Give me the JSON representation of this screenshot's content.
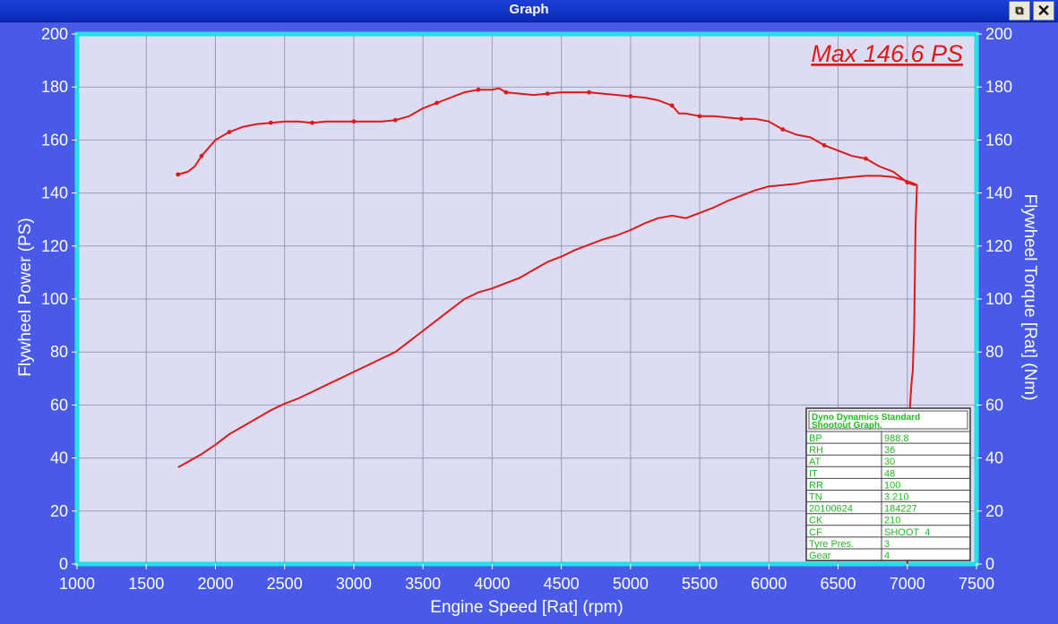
{
  "window": {
    "title": "Graph",
    "restore_glyph": "⧉",
    "close_glyph": "✕"
  },
  "colors": {
    "background": "#4a5ae8",
    "plot_area": "#dcdcf2",
    "plot_border": "#22e0e8",
    "curve": "#dd1a1a",
    "grid": "#9a9ab8",
    "axis_text": "#ffffff",
    "info_text": "#22bb22"
  },
  "chart_data": {
    "type": "line",
    "xlabel": "Engine Speed [Rat] (rpm)",
    "ylabel_left": "Flywheel Power (PS)",
    "ylabel_right": "Flywheel Torque [Rat] (Nm)",
    "xlim": [
      1000,
      7500
    ],
    "ylim": [
      0,
      200
    ],
    "x_ticks": [
      1000,
      1500,
      2000,
      2500,
      3000,
      3500,
      4000,
      4500,
      5000,
      5500,
      6000,
      6500,
      7000,
      7500
    ],
    "y_ticks": [
      0,
      20,
      40,
      60,
      80,
      100,
      120,
      140,
      160,
      180,
      200
    ],
    "y_ticks_right": [
      "0",
      "20",
      "40",
      "60",
      "80",
      "100",
      "120",
      "140",
      "160",
      "180",
      "200"
    ],
    "grid": true,
    "annotation": "Max 146.6 PS",
    "series": [
      {
        "x": [
          1730,
          1800,
          1850,
          1900,
          1950,
          2000,
          2100,
          2200,
          2300,
          2400,
          2500,
          2600,
          2700,
          2800,
          2900,
          3000,
          3100,
          3200,
          3300,
          3400,
          3500,
          3600,
          3700,
          3800,
          3900,
          4000,
          4050,
          4100,
          4200,
          4300,
          4400,
          4500,
          4600,
          4700,
          4800,
          4900,
          5000,
          5100,
          5200,
          5300,
          5350,
          5400,
          5500,
          5600,
          5700,
          5800,
          5900,
          6000,
          6100,
          6200,
          6300,
          6400,
          6500,
          6600,
          6700,
          6800,
          6900,
          7000,
          7050,
          7060
        ],
        "values": [
          147,
          148,
          150,
          154,
          157,
          160,
          163,
          165,
          166,
          166.5,
          167,
          167,
          166.5,
          167,
          167,
          167,
          167,
          167,
          167.5,
          169,
          172,
          174,
          176,
          178,
          179,
          179,
          179.5,
          178,
          177.5,
          177,
          177.5,
          178,
          178,
          178,
          177.5,
          177,
          176.5,
          176,
          175,
          173,
          170,
          170,
          169,
          169,
          168.5,
          168,
          168,
          167,
          164,
          162,
          161,
          158,
          156,
          154,
          153,
          150,
          148,
          144,
          143,
          143
        ]
      },
      {
        "x": [
          1730,
          1800,
          1900,
          2000,
          2100,
          2200,
          2300,
          2400,
          2500,
          2600,
          2700,
          2800,
          2900,
          3000,
          3100,
          3200,
          3300,
          3400,
          3500,
          3600,
          3700,
          3800,
          3900,
          4000,
          4100,
          4200,
          4300,
          4400,
          4500,
          4600,
          4700,
          4800,
          4900,
          5000,
          5100,
          5200,
          5300,
          5400,
          5500,
          5600,
          5700,
          5800,
          5900,
          6000,
          6100,
          6200,
          6300,
          6400,
          6500,
          6600,
          6700,
          6800,
          6900,
          7000,
          7050,
          7070,
          7060,
          7055,
          7050,
          7040,
          7030,
          7020,
          7010,
          7000
        ],
        "values": [
          36.5,
          38.5,
          41.5,
          45,
          49,
          52,
          55,
          58,
          60.5,
          62.5,
          65,
          67.5,
          70,
          72.5,
          75,
          77.5,
          80,
          84,
          88,
          92,
          96,
          100,
          102.5,
          104,
          106,
          108,
          111,
          114,
          116,
          118.5,
          120.5,
          122.5,
          124,
          126,
          128.5,
          130.5,
          131.5,
          130.5,
          132.5,
          134.5,
          137,
          139,
          141,
          142.5,
          143,
          143.5,
          144.5,
          145,
          145.5,
          146,
          146.5,
          146.5,
          146,
          144.5,
          143.5,
          143,
          128,
          110,
          90,
          73,
          68,
          60,
          40,
          0
        ]
      }
    ]
  },
  "info_table": {
    "title_line1": "Dyno Dynamics Standard",
    "title_line2": "Shootout Graph.",
    "rows": [
      [
        "BP",
        "988.8"
      ],
      [
        "RH",
        "36"
      ],
      [
        "AT",
        "30"
      ],
      [
        "IT",
        "48"
      ],
      [
        "RR",
        "100"
      ],
      [
        "TN",
        "3.210"
      ],
      [
        "20100624",
        "184227"
      ],
      [
        "CK",
        "210"
      ],
      [
        "CF",
        "SHOOT_4"
      ],
      [
        "Tyre Pres.",
        "3"
      ],
      [
        "Gear",
        "4"
      ]
    ]
  }
}
